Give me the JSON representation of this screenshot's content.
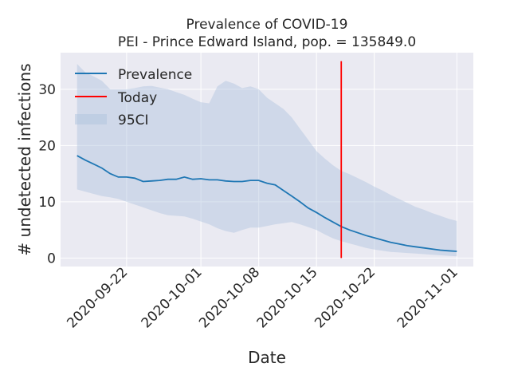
{
  "chart_data": {
    "type": "line",
    "title_line1": "Prevalence of COVID-19",
    "title_line2": "PEI - Prince Edward Island, pop. = 135849.0",
    "xlabel": "Date",
    "ylabel": "# undetected infections",
    "x_ticks": [
      "2020-09-22",
      "2020-10-01",
      "2020-10-08",
      "2020-10-15",
      "2020-10-22",
      "2020-11-01"
    ],
    "y_ticks": [
      0,
      10,
      20,
      30
    ],
    "ylim": [
      -1.5,
      36.5
    ],
    "xlim": [
      "2020-09-14",
      "2020-11-03"
    ],
    "grid": true,
    "legend_position": "top-left",
    "legend": {
      "prevalence": "Prevalence",
      "today": "Today",
      "ci": "95CI"
    },
    "colors": {
      "line": "#1f77b4",
      "today": "#ff0000",
      "band": "#b0c4de",
      "background": "#eaeaf2"
    },
    "today": {
      "date": "2020-10-18",
      "ymin": 0,
      "ymax": 35
    },
    "series": [
      {
        "name": "Prevalence",
        "dates": [
          "2020-09-16",
          "2020-09-17",
          "2020-09-18",
          "2020-09-19",
          "2020-09-20",
          "2020-09-21",
          "2020-09-22",
          "2020-09-23",
          "2020-09-24",
          "2020-09-25",
          "2020-09-26",
          "2020-09-27",
          "2020-09-28",
          "2020-09-29",
          "2020-09-30",
          "2020-10-01",
          "2020-10-02",
          "2020-10-03",
          "2020-10-04",
          "2020-10-05",
          "2020-10-06",
          "2020-10-07",
          "2020-10-08",
          "2020-10-09",
          "2020-10-10",
          "2020-10-11",
          "2020-10-12",
          "2020-10-13",
          "2020-10-14",
          "2020-10-15",
          "2020-10-16",
          "2020-10-17",
          "2020-10-18",
          "2020-10-19",
          "2020-10-20",
          "2020-10-21",
          "2020-10-22",
          "2020-10-23",
          "2020-10-24",
          "2020-10-25",
          "2020-10-26",
          "2020-10-27",
          "2020-10-28",
          "2020-10-29",
          "2020-10-30",
          "2020-10-31",
          "2020-11-01"
        ],
        "values": [
          18.2,
          17.4,
          16.7,
          16.0,
          15.0,
          14.4,
          14.4,
          14.2,
          13.6,
          13.7,
          13.8,
          14.0,
          14.0,
          14.4,
          14.0,
          14.1,
          13.9,
          13.9,
          13.7,
          13.6,
          13.6,
          13.8,
          13.8,
          13.3,
          13.0,
          12.0,
          11.0,
          10.0,
          8.9,
          8.1,
          7.2,
          6.4,
          5.6,
          5.0,
          4.5,
          4.0,
          3.6,
          3.2,
          2.8,
          2.5,
          2.2,
          2.0,
          1.8,
          1.6,
          1.4,
          1.3,
          1.2
        ],
        "ci_upper": [
          34.5,
          33.0,
          32.3,
          31.5,
          30.0,
          30.0,
          30.0,
          30.2,
          30.5,
          30.6,
          30.3,
          30.0,
          29.5,
          29.0,
          28.3,
          27.7,
          27.5,
          30.5,
          31.5,
          31.0,
          30.2,
          30.5,
          30.0,
          28.5,
          27.5,
          26.5,
          25.0,
          23.0,
          21.0,
          19.0,
          17.7,
          16.5,
          15.5,
          14.9,
          14.2,
          13.5,
          12.7,
          12.0,
          11.2,
          10.5,
          9.8,
          9.1,
          8.6,
          8.0,
          7.5,
          7.0,
          6.6
        ],
        "ci_lower": [
          12.2,
          11.8,
          11.4,
          11.0,
          10.8,
          10.5,
          10.0,
          9.5,
          9.0,
          8.5,
          8.0,
          7.6,
          7.5,
          7.4,
          7.0,
          6.5,
          6.0,
          5.3,
          4.8,
          4.5,
          5.0,
          5.4,
          5.4,
          5.7,
          6.0,
          6.2,
          6.4,
          6.0,
          5.5,
          5.0,
          4.2,
          3.5,
          3.0,
          2.6,
          2.2,
          1.8,
          1.5,
          1.3,
          1.1,
          1.0,
          0.9,
          0.8,
          0.7,
          0.6,
          0.5,
          0.4,
          0.3
        ]
      }
    ]
  }
}
